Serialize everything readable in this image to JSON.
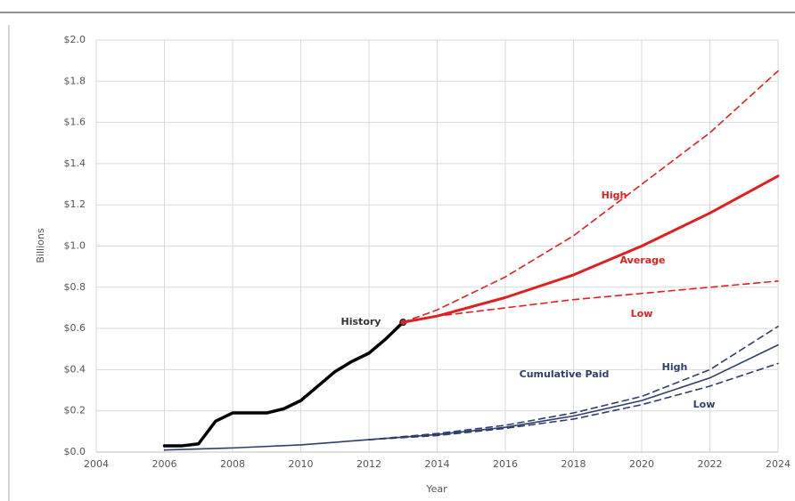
{
  "chart_data": {
    "type": "line",
    "x_label": "Year",
    "y_label": "Billions",
    "xlim": [
      2004,
      2024
    ],
    "xticks": [
      2004,
      2006,
      2008,
      2010,
      2012,
      2014,
      2016,
      2018,
      2020,
      2022,
      2024
    ],
    "ylim": [
      0,
      2.0
    ],
    "yticks": [
      {
        "value": 0,
        "label": "$0.0"
      },
      {
        "value": 0.2,
        "label": "$0.2"
      },
      {
        "value": 0.4,
        "label": "$0.4"
      },
      {
        "value": 0.6,
        "label": "$0.6"
      },
      {
        "value": 0.8,
        "label": "$0.8"
      },
      {
        "value": 1.0,
        "label": "$1.0"
      },
      {
        "value": 1.2,
        "label": "$1.2"
      },
      {
        "value": 1.4,
        "label": "$1.4"
      },
      {
        "value": 1.6,
        "label": "$1.6"
      },
      {
        "value": 1.8,
        "label": "$1.8"
      },
      {
        "value": 2.0,
        "label": "$2.0"
      }
    ],
    "grid": true,
    "series": [
      {
        "name": "History",
        "color": "#000000",
        "dashed": false,
        "width": 3.5,
        "marker_last": true,
        "x": [
          2006,
          2006.5,
          2007,
          2007.5,
          2008,
          2008.5,
          2009,
          2009.5,
          2010,
          2010.5,
          2011,
          2011.5,
          2012,
          2012.5,
          2013
        ],
        "values": [
          0.03,
          0.03,
          0.04,
          0.15,
          0.19,
          0.19,
          0.19,
          0.21,
          0.25,
          0.32,
          0.39,
          0.44,
          0.48,
          0.55,
          0.63
        ]
      },
      {
        "name": "Average",
        "color": "#e02020",
        "dashed": false,
        "width": 3,
        "x": [
          2013,
          2014,
          2016,
          2018,
          2020,
          2022,
          2024
        ],
        "values": [
          0.63,
          0.66,
          0.75,
          0.86,
          1.0,
          1.16,
          1.34
        ]
      },
      {
        "name": "High",
        "color": "#e02020",
        "dashed": true,
        "width": 1.6,
        "x": [
          2013,
          2014,
          2016,
          2018,
          2020,
          2022,
          2024
        ],
        "values": [
          0.63,
          0.69,
          0.85,
          1.05,
          1.3,
          1.55,
          1.85
        ]
      },
      {
        "name": "Low",
        "color": "#e02020",
        "dashed": true,
        "width": 1.6,
        "x": [
          2013,
          2014,
          2016,
          2018,
          2020,
          2022,
          2024
        ],
        "values": [
          0.63,
          0.66,
          0.7,
          0.74,
          0.77,
          0.8,
          0.83
        ]
      },
      {
        "name": "Cumulative Paid",
        "color": "#2f3f6b",
        "dashed": false,
        "width": 1.6,
        "x": [
          2006,
          2008,
          2010,
          2012,
          2014,
          2016,
          2018,
          2020,
          2022,
          2024
        ],
        "values": [
          0.01,
          0.02,
          0.035,
          0.06,
          0.085,
          0.12,
          0.175,
          0.25,
          0.36,
          0.52
        ]
      },
      {
        "name": "High",
        "color": "#2f3f6b",
        "dashed": true,
        "width": 1.6,
        "x": [
          2012,
          2014,
          2016,
          2018,
          2020,
          2022,
          2024
        ],
        "values": [
          0.06,
          0.09,
          0.13,
          0.19,
          0.27,
          0.4,
          0.61
        ]
      },
      {
        "name": "Low",
        "color": "#2f3f6b",
        "dashed": true,
        "width": 1.6,
        "x": [
          2012,
          2014,
          2016,
          2018,
          2020,
          2022,
          2024
        ],
        "values": [
          0.06,
          0.08,
          0.115,
          0.16,
          0.23,
          0.32,
          0.43
        ]
      }
    ]
  }
}
